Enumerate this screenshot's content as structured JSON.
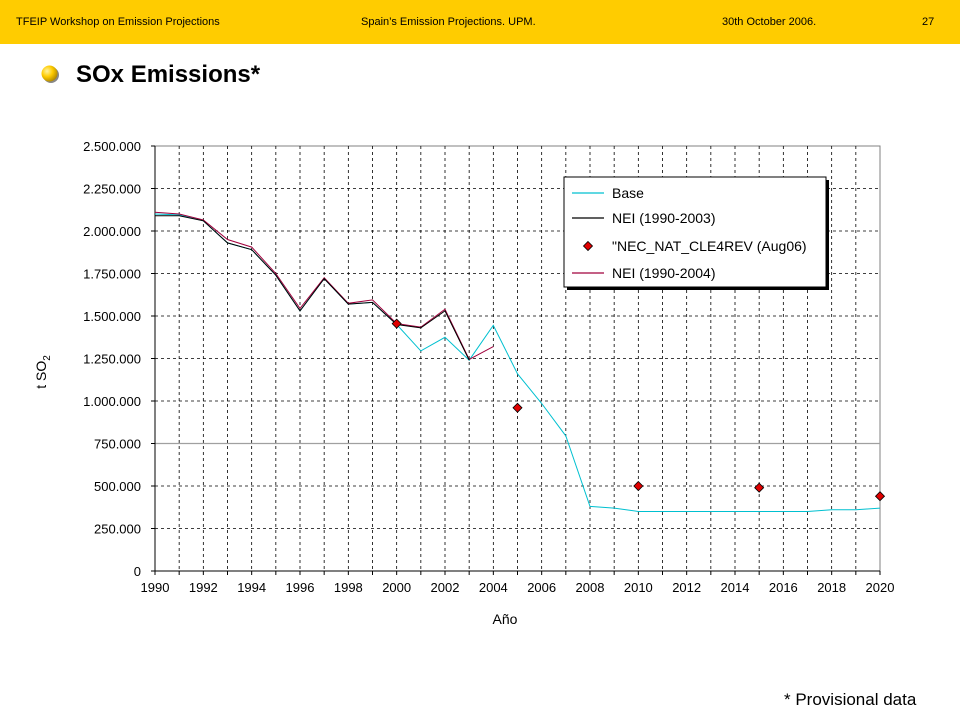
{
  "header": {
    "left": "TFEIP Workshop on Emission Projections",
    "center": "Spain’s Emission Projections. UPM.",
    "date": "30th October  2006.",
    "page": "27"
  },
  "slide": {
    "title": "SOx Emissions*",
    "footnote": "* Provisional data"
  },
  "colors": {
    "header_bg": "#ffcc00",
    "base": "#00c0d0",
    "nei_2003": "#000000",
    "nei_2004": "#a0003c",
    "marker": "#e00000"
  },
  "chart_data": {
    "type": "line",
    "xlabel": "Año",
    "ylabel": "t SO",
    "ylabel_sub": "2",
    "xlim": [
      1990,
      2020
    ],
    "ylim": [
      0,
      2500000
    ],
    "xticks": [
      1990,
      1992,
      1994,
      1996,
      1998,
      2000,
      2002,
      2004,
      2006,
      2008,
      2010,
      2012,
      2014,
      2016,
      2018,
      2020
    ],
    "xtick_labels": [
      "1990",
      "1992",
      "1994",
      "1996",
      "1998",
      "2000",
      "2002",
      "2004",
      "2006",
      "2008",
      "2010",
      "2012",
      "2014",
      "2016",
      "2018",
      "2020"
    ],
    "yticks": [
      0,
      250000,
      500000,
      750000,
      1000000,
      1250000,
      1500000,
      1750000,
      2000000,
      2250000,
      2500000
    ],
    "ytick_labels": [
      "0",
      "250.000",
      "500.000",
      "750.000",
      "1.000.000",
      "1.250.000",
      "1.500.000",
      "1.750.000",
      "2.000.000",
      "2.250.000",
      "2.500.000"
    ],
    "grid": true,
    "legend_position": "top-right",
    "series": [
      {
        "name": "Base",
        "kind": "line",
        "color": "#00c0d0",
        "x": [
          1990,
          1991,
          1992,
          1993,
          1994,
          1995,
          1996,
          1997,
          1998,
          1999,
          2000,
          2001,
          2002,
          2003,
          2004,
          2005,
          2006,
          2007,
          2008,
          2009,
          2010,
          2011,
          2012,
          2013,
          2014,
          2015,
          2016,
          2017,
          2018,
          2019,
          2020
        ],
        "y": [
          2100000,
          2095000,
          2060000,
          1930000,
          1890000,
          1740000,
          1530000,
          1720000,
          1570000,
          1580000,
          1450000,
          1295000,
          1375000,
          1240000,
          1445000,
          1160000,
          985000,
          795000,
          380000,
          370000,
          350000,
          350000,
          350000,
          350000,
          350000,
          350000,
          350000,
          350000,
          360000,
          360000,
          370000
        ]
      },
      {
        "name": "NEI (1990-2003)",
        "kind": "line",
        "color": "#000000",
        "x": [
          1990,
          1991,
          1992,
          1993,
          1994,
          1995,
          1996,
          1997,
          1998,
          1999,
          2000,
          2001,
          2002,
          2003
        ],
        "y": [
          2090000,
          2090000,
          2060000,
          1930000,
          1890000,
          1740000,
          1530000,
          1720000,
          1570000,
          1580000,
          1450000,
          1430000,
          1530000,
          1240000
        ]
      },
      {
        "name": "\"NEC_NAT_CLE4REV (Aug06)",
        "kind": "scatter",
        "color": "#e00000",
        "x": [
          2000,
          2005,
          2010,
          2015,
          2020
        ],
        "y": [
          1455000,
          960000,
          500000,
          490000,
          440000
        ]
      },
      {
        "name": "NEI (1990-2004)",
        "kind": "line",
        "color": "#a0003c",
        "x": [
          1990,
          1991,
          1992,
          1993,
          1994,
          1995,
          1996,
          1997,
          1998,
          1999,
          2000,
          2001,
          2002,
          2003,
          2004
        ],
        "y": [
          2110000,
          2100000,
          2065000,
          1950000,
          1905000,
          1750000,
          1545000,
          1725000,
          1575000,
          1595000,
          1455000,
          1435000,
          1540000,
          1245000,
          1320000
        ]
      }
    ]
  }
}
